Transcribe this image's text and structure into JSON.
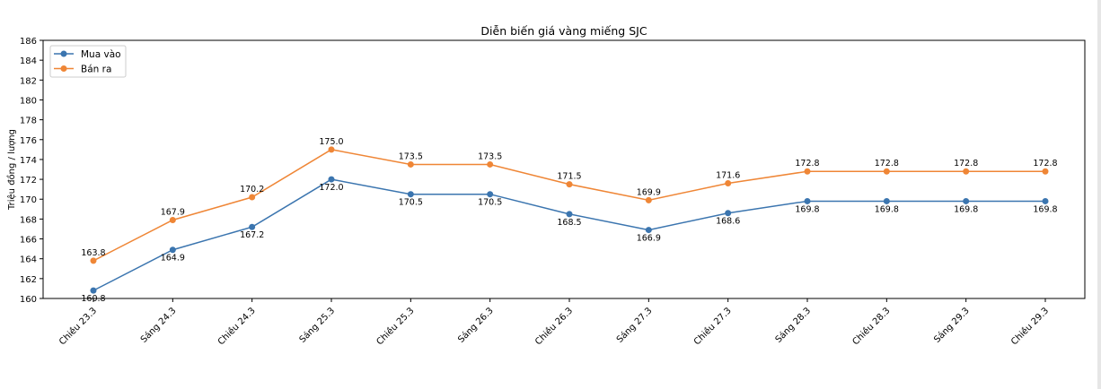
{
  "chart_data": {
    "type": "line",
    "title": "Diễn biến giá vàng miếng SJC",
    "xlabel": "",
    "ylabel": "Triệu đồng / lượng",
    "ylim": [
      160,
      186
    ],
    "yticks": [
      160,
      162,
      164,
      166,
      168,
      170,
      172,
      174,
      176,
      178,
      180,
      182,
      184,
      186
    ],
    "categories": [
      "Chiều 23.3",
      "Sáng 24.3",
      "Chiều 24.3",
      "Sáng 25.3",
      "Chiều 25.3",
      "Sáng 26.3",
      "Chiều 26.3",
      "Sáng 27.3",
      "Chiều 27.3",
      "Sáng 28.3",
      "Chiều 28.3",
      "Sáng 29.3",
      "Chiều 29.3"
    ],
    "series": [
      {
        "name": "Mua vào",
        "color": "#3b75af",
        "values": [
          160.8,
          164.9,
          167.2,
          172.0,
          170.5,
          170.5,
          168.5,
          166.9,
          168.6,
          169.8,
          169.8,
          169.8,
          169.8
        ]
      },
      {
        "name": "Bán ra",
        "color": "#ef8636",
        "values": [
          163.8,
          167.9,
          170.2,
          175.0,
          173.5,
          173.5,
          171.5,
          169.9,
          171.6,
          172.8,
          172.8,
          172.8,
          172.8
        ]
      }
    ],
    "grid": false,
    "legend": "top-left",
    "marker": "circle"
  }
}
